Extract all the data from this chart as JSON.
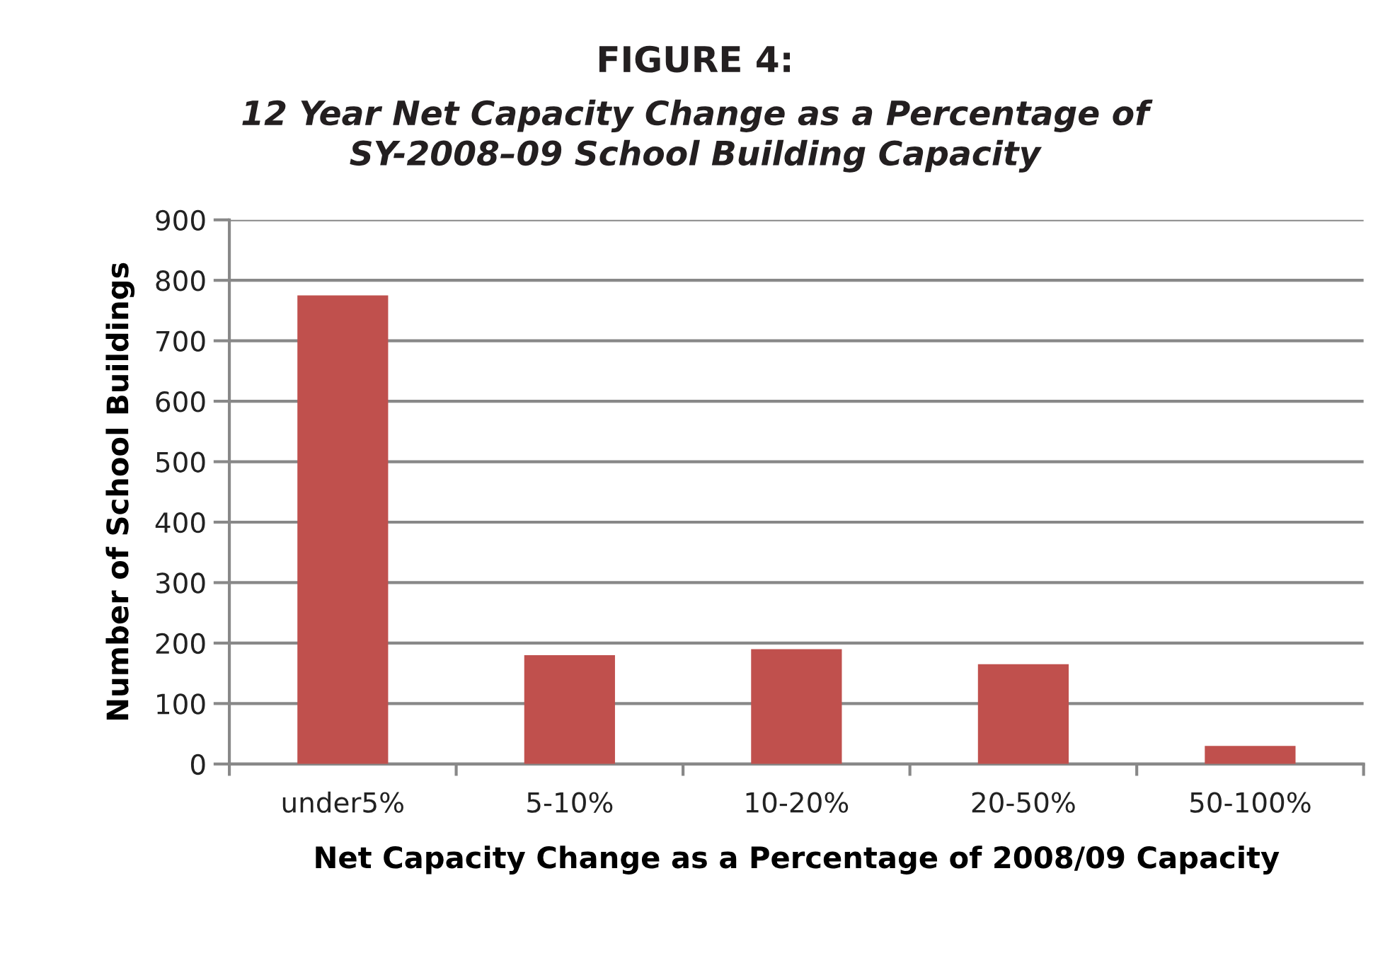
{
  "chart_data": {
    "type": "bar",
    "title": "FIGURE 4:",
    "subtitle": "12 Year Net Capacity Change as a Percentage of\nSY-2008–09 School Building Capacity",
    "xlabel": "Net Capacity Change as a Percentage of 2008/09 Capacity",
    "ylabel": "Number of School Buildings",
    "categories": [
      "under5%",
      "5-10%",
      "10-20%",
      "20-50%",
      "50-100%"
    ],
    "values": [
      775,
      180,
      190,
      165,
      30
    ],
    "color": "#c0504d",
    "ylim": [
      0,
      900
    ],
    "yticks": [
      0,
      100,
      200,
      300,
      400,
      500,
      600,
      700,
      800,
      900
    ],
    "grid": "y",
    "legend": false
  }
}
